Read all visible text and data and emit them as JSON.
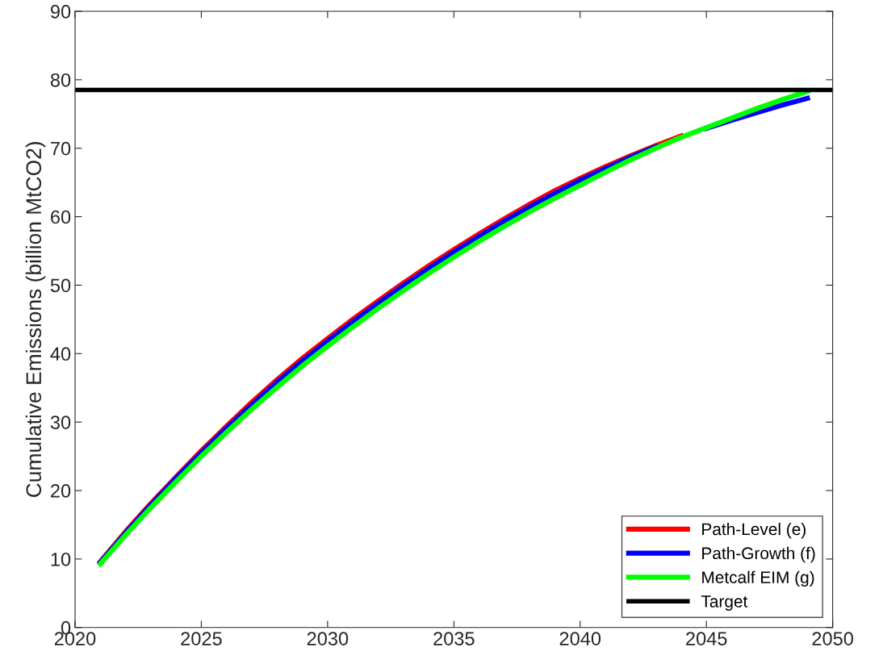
{
  "chart_data": {
    "type": "line",
    "ylabel": "Cumulative Emissions (billion MtCO2)",
    "x": [
      2021,
      2022,
      2023,
      2024,
      2025,
      2026,
      2027,
      2028,
      2029,
      2030,
      2031,
      2032,
      2033,
      2034,
      2035,
      2036,
      2037,
      2038,
      2039,
      2040,
      2041,
      2042,
      2043,
      2044,
      2045,
      2046,
      2047,
      2048,
      2049
    ],
    "series": [
      {
        "name": "Path-Level (e)",
        "color": "#ff0000",
        "values": [
          9.6,
          14.0,
          18.1,
          22.0,
          25.8,
          29.4,
          32.9,
          36.2,
          39.3,
          42.2,
          45.0,
          47.7,
          50.3,
          52.8,
          55.2,
          57.5,
          59.7,
          61.8,
          63.8,
          65.6,
          67.3,
          68.9,
          70.4,
          71.8,
          null,
          null,
          null,
          null,
          null
        ]
      },
      {
        "name": "Path-Growth (f)",
        "color": "#0000ff",
        "values": [
          9.5,
          13.8,
          17.9,
          21.8,
          25.5,
          29.1,
          32.5,
          35.8,
          38.9,
          41.8,
          44.6,
          47.3,
          49.9,
          52.4,
          54.8,
          57.1,
          59.3,
          61.4,
          63.4,
          65.3,
          67.0,
          68.7,
          70.2,
          null,
          72.9,
          74.1,
          75.2,
          76.3,
          77.3
        ]
      },
      {
        "name": "Metcalf EIM (g)",
        "color": "#00ff00",
        "values": [
          9.3,
          13.5,
          17.5,
          21.3,
          25.0,
          28.5,
          31.9,
          35.1,
          38.2,
          41.1,
          43.9,
          46.6,
          49.2,
          51.7,
          54.1,
          56.4,
          58.6,
          60.7,
          62.7,
          64.6,
          66.5,
          68.3,
          70.0,
          71.6,
          73.0,
          74.4,
          75.8,
          77.1,
          78.3
        ]
      }
    ],
    "ref_lines": [
      {
        "axis": "y",
        "value": 78.5,
        "label": "Target",
        "color": "#000000"
      }
    ],
    "xlim": [
      2020,
      2050
    ],
    "xticks": [
      2020,
      2025,
      2030,
      2035,
      2040,
      2045,
      2050
    ],
    "ylim": [
      0,
      90
    ],
    "yticks": [
      0,
      10,
      20,
      30,
      40,
      50,
      60,
      70,
      80,
      90
    ],
    "legend": "bottom right",
    "grid": false
  }
}
